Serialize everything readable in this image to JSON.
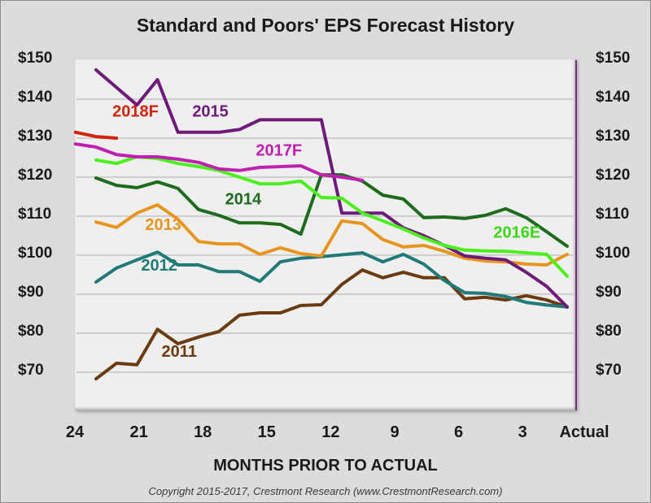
{
  "chart_data": {
    "type": "line",
    "title": "Standard and Poors' EPS Forecast History",
    "xlabel": "MONTHS PRIOR TO ACTUAL",
    "ylabel": "",
    "x_ticks": [
      {
        "value": 24,
        "label": "24"
      },
      {
        "value": 21,
        "label": "21"
      },
      {
        "value": 18,
        "label": "18"
      },
      {
        "value": 15,
        "label": "15"
      },
      {
        "value": 12,
        "label": "12"
      },
      {
        "value": 9,
        "label": "9"
      },
      {
        "value": 6,
        "label": "6"
      },
      {
        "value": 3,
        "label": "3"
      },
      {
        "value": 0,
        "label": "Actual"
      }
    ],
    "y_ticks": [
      "$150",
      "$140",
      "$130",
      "$120",
      "$110",
      "$100",
      "$90",
      "$80",
      "$70"
    ],
    "y_tick_values": [
      150,
      140,
      130,
      120,
      110,
      100,
      90,
      80,
      70
    ],
    "ylim": [
      60,
      150
    ],
    "xlim": [
      24,
      0
    ],
    "grid": true,
    "legend": "inline-labels",
    "series": [
      {
        "name": "2011",
        "color": "#6b3a0e",
        "x": [
          23,
          22,
          21,
          20,
          19,
          18,
          17,
          16,
          15,
          14,
          13,
          12,
          11,
          10,
          9,
          8,
          7,
          6,
          5,
          4,
          3,
          2,
          1,
          0
        ],
        "values": [
          68.3,
          72.3,
          71.9,
          81.0,
          77.3,
          79.0,
          80.4,
          84.6,
          85.2,
          85.2,
          87.1,
          87.3,
          92.5,
          96.2,
          94.2,
          95.6,
          94.2,
          94.2,
          88.8,
          89.2,
          88.5,
          89.6,
          88.5,
          86.7
        ]
      },
      {
        "name": "2012",
        "color": "#1f7a78",
        "x": [
          23,
          22,
          21,
          20,
          19,
          18,
          17,
          16,
          15,
          14,
          13,
          12,
          11,
          10,
          9,
          8,
          7,
          6,
          5,
          4,
          3,
          2,
          1,
          0
        ],
        "values": [
          93.1,
          96.7,
          98.8,
          100.8,
          97.5,
          97.5,
          95.8,
          95.8,
          93.3,
          98.3,
          99.2,
          99.6,
          100.1,
          100.6,
          98.3,
          100.2,
          97.7,
          93.5,
          90.4,
          90.2,
          89.4,
          87.9,
          87.2,
          86.7
        ]
      },
      {
        "name": "2013",
        "color": "#e8951f",
        "x": [
          23,
          22,
          21,
          20,
          19,
          18,
          17,
          16,
          15,
          14,
          13,
          12,
          11,
          10,
          9,
          8,
          7,
          6,
          5,
          4,
          3,
          2,
          1,
          0
        ],
        "values": [
          108.5,
          107.1,
          110.8,
          112.9,
          109.2,
          103.5,
          102.9,
          102.9,
          100.2,
          101.9,
          100.4,
          99.8,
          108.8,
          108.1,
          104.0,
          102.1,
          102.5,
          101.0,
          99.2,
          98.5,
          98.3,
          97.7,
          97.5,
          100.2
        ]
      },
      {
        "name": "2014",
        "color": "#1e6b1e",
        "x": [
          23,
          22,
          21,
          20,
          19,
          18,
          17,
          16,
          15,
          14,
          13,
          12,
          11,
          10,
          9,
          8,
          7,
          6,
          5,
          4,
          3,
          2,
          1,
          0
        ],
        "values": [
          119.8,
          117.9,
          117.3,
          118.8,
          117.1,
          111.7,
          110.2,
          108.3,
          108.3,
          107.9,
          105.4,
          120.6,
          120.6,
          119.0,
          115.4,
          114.4,
          109.6,
          109.8,
          109.4,
          110.2,
          111.9,
          109.6,
          106.0,
          102.3
        ]
      },
      {
        "name": "2015",
        "color": "#6e1a78",
        "x": [
          23,
          21,
          20,
          19,
          18,
          17,
          16,
          15,
          14,
          13,
          12,
          11,
          10,
          9,
          8,
          7,
          6,
          5,
          4,
          3,
          2,
          1,
          0
        ],
        "values": [
          147.5,
          138.5,
          145.0,
          131.5,
          131.5,
          131.5,
          132.2,
          134.7,
          134.7,
          134.7,
          134.7,
          110.8,
          110.8,
          110.8,
          107.0,
          105.0,
          102.5,
          99.8,
          99.2,
          98.8,
          95.6,
          92.0,
          86.7
        ]
      },
      {
        "name": "2016E",
        "color": "#4cf01e",
        "x": [
          23,
          22,
          21,
          20,
          19,
          18,
          17,
          16,
          15,
          14,
          13,
          12,
          11,
          10,
          9,
          8,
          7,
          6,
          5,
          4,
          3,
          2,
          1,
          0
        ],
        "values": [
          124.4,
          123.5,
          125.2,
          124.8,
          123.5,
          122.7,
          121.7,
          120.0,
          118.3,
          118.3,
          119.0,
          114.8,
          114.6,
          110.8,
          108.8,
          106.7,
          104.4,
          102.5,
          101.3,
          101.1,
          101.0,
          100.6,
          100.2,
          94.6
        ]
      },
      {
        "name": "2017F",
        "color": "#c020b0",
        "x": [
          24,
          23,
          22,
          21,
          20,
          19,
          18,
          17,
          16,
          15,
          14,
          13,
          12,
          11,
          10
        ],
        "values": [
          128.5,
          127.7,
          125.8,
          125.2,
          125.2,
          124.6,
          123.8,
          122.1,
          121.7,
          122.5,
          122.7,
          122.9,
          120.6,
          120.0,
          119.2
        ]
      },
      {
        "name": "2018F",
        "color": "#d2230e",
        "x": [
          24,
          23,
          22
        ],
        "values": [
          131.5,
          130.4,
          130.0
        ]
      }
    ],
    "series_labels": [
      {
        "series": "2018F",
        "text": "2018F",
        "at_x": 22.2,
        "at_y": 135.5
      },
      {
        "series": "2015",
        "text": "2015",
        "at_x": 18.3,
        "at_y": 135.5
      },
      {
        "series": "2017F",
        "text": "2017F",
        "at_x": 15.2,
        "at_y": 125.5
      },
      {
        "series": "2014",
        "text": "2014",
        "at_x": 16.7,
        "at_y": 113.0
      },
      {
        "series": "2013",
        "text": "2013",
        "at_x": 20.6,
        "at_y": 106.5
      },
      {
        "series": "2012",
        "text": "2012",
        "at_x": 20.8,
        "at_y": 96.0
      },
      {
        "series": "2011",
        "text": "2011",
        "at_x": 19.8,
        "at_y": 74.0
      },
      {
        "series": "2016E",
        "text": "2016E",
        "at_x": 3.6,
        "at_y": 104.5
      }
    ]
  },
  "footer": {
    "copyright": "Copyright 2015-2017, Crestmont Research (www.CrestmontResearch.com)"
  }
}
